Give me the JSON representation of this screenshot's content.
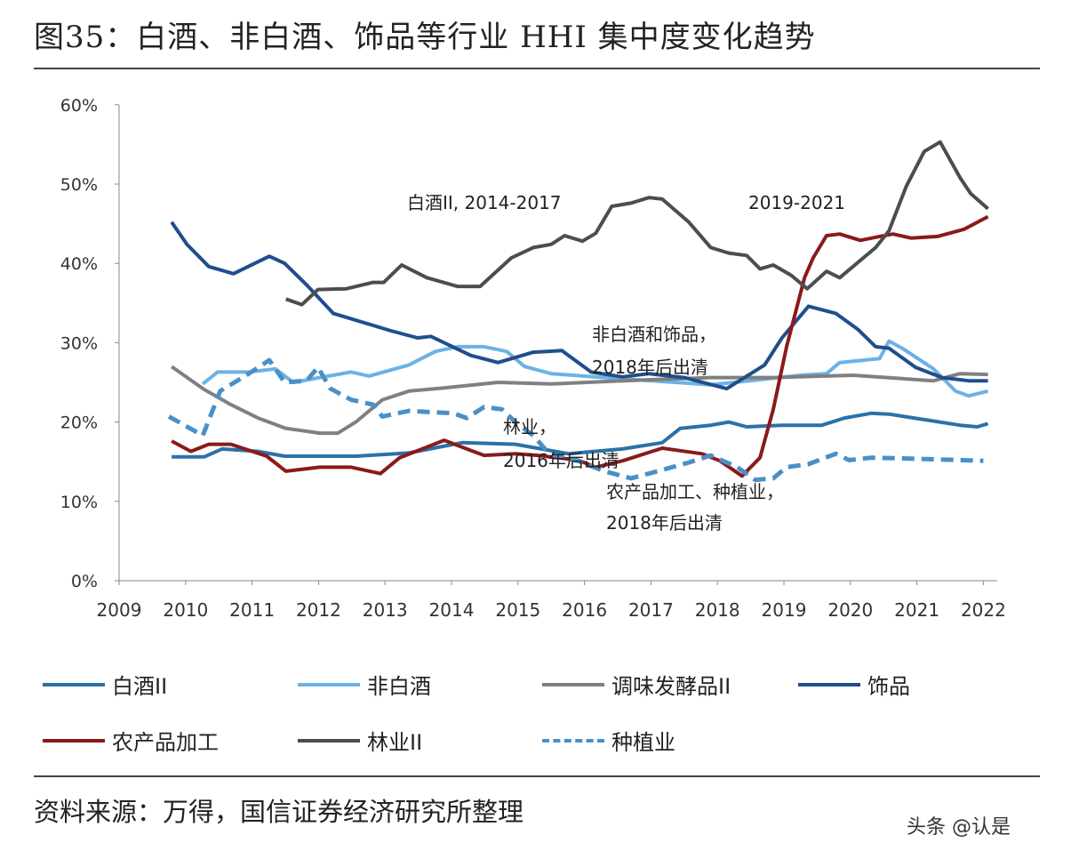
{
  "header": {
    "title": "图35：白酒、非白酒、饰品等行业 HHI 集中度变化趋势"
  },
  "footer": {
    "source": "资料来源：万得，国信证券经济研究所整理",
    "watermark": "头条 @认是"
  },
  "chart_data": {
    "type": "line",
    "title": "",
    "xlabel": "",
    "ylabel": "",
    "xlim": [
      2009,
      2022.3
    ],
    "ylim": [
      0,
      60
    ],
    "x_ticks": [
      "2009",
      "2010",
      "2011",
      "2012",
      "2013",
      "2014",
      "2015",
      "2016",
      "2017",
      "2018",
      "2019",
      "2020",
      "2021",
      "2022"
    ],
    "y_ticks": [
      "0%",
      "10%",
      "20%",
      "30%",
      "40%",
      "50%",
      "60%"
    ],
    "grid": false,
    "legend_placement": "bottom",
    "annotations": [
      "白酒II, 2014-2017",
      "2019-2021",
      "非白酒和饰品，",
      "2018年后出清",
      "林业，",
      "2016年后出清",
      "农产品加工、种植业，",
      "2018年后出清"
    ],
    "series": [
      {
        "name": "白酒II",
        "color": "#2a72a8",
        "dash": false,
        "x": [
          2009.79,
          2010.28,
          2010.55,
          2011.09,
          2011.49,
          2012.56,
          2013.36,
          2014.16,
          2014.96,
          2015.76,
          2016.57,
          2017.17,
          2017.44,
          2017.9,
          2018.17,
          2018.44,
          2018.97,
          2019.57,
          2019.91,
          2020.31,
          2020.58,
          2021.11,
          2021.65,
          2021.91,
          2022.07
        ],
        "y": [
          15.6,
          15.6,
          16.6,
          16.3,
          15.7,
          15.7,
          16.1,
          17.4,
          17.2,
          16.0,
          16.6,
          17.4,
          19.2,
          19.6,
          20.0,
          19.4,
          19.6,
          19.6,
          20.5,
          21.1,
          21.0,
          20.3,
          19.6,
          19.4,
          19.8
        ]
      },
      {
        "name": "非白酒",
        "color": "#6cb2e4",
        "dash": false,
        "x": [
          2010.26,
          2010.48,
          2010.95,
          2011.35,
          2011.62,
          2012.02,
          2012.49,
          2012.76,
          2013.36,
          2013.76,
          2014.09,
          2014.49,
          2014.83,
          2015.1,
          2015.5,
          2016.3,
          2017.37,
          2017.9,
          2018.71,
          2019.24,
          2019.64,
          2019.84,
          2020.44,
          2020.58,
          2020.78,
          2021.25,
          2021.58,
          2021.78,
          2022.07
        ],
        "y": [
          24.8,
          26.3,
          26.3,
          26.7,
          25.0,
          25.6,
          26.3,
          25.8,
          27.2,
          28.9,
          29.5,
          29.5,
          28.9,
          27.0,
          26.1,
          25.6,
          25.0,
          24.7,
          25.4,
          25.9,
          26.1,
          27.5,
          28.0,
          30.2,
          29.3,
          26.7,
          23.9,
          23.3,
          23.9
        ]
      },
      {
        "name": "调味发酵品II",
        "color": "#808080",
        "dash": false,
        "x": [
          2009.79,
          2010.28,
          2010.68,
          2011.09,
          2011.51,
          2012.02,
          2012.29,
          2012.56,
          2012.96,
          2013.36,
          2013.89,
          2014.7,
          2015.5,
          2016.57,
          2017.9,
          2018.84,
          2020.04,
          2021.25,
          2021.65,
          2022.07
        ],
        "y": [
          27.0,
          24.1,
          22.2,
          20.5,
          19.2,
          18.6,
          18.6,
          20.0,
          22.8,
          23.9,
          24.3,
          25.0,
          24.8,
          25.2,
          25.6,
          25.6,
          25.9,
          25.2,
          26.1,
          26.0
        ]
      },
      {
        "name": "饰品",
        "color": "#1f4e8c",
        "dash": false,
        "x": [
          2009.79,
          2010.02,
          2010.35,
          2010.72,
          2011.26,
          2011.49,
          2011.82,
          2012.22,
          2013.09,
          2013.49,
          2013.69,
          2014.29,
          2014.7,
          2015.23,
          2015.66,
          2016.1,
          2016.57,
          2016.97,
          2017.5,
          2018.14,
          2018.71,
          2018.97,
          2019.37,
          2019.78,
          2020.11,
          2020.38,
          2020.58,
          2020.98,
          2021.38,
          2021.78,
          2022.07
        ],
        "y": [
          45.2,
          42.4,
          39.6,
          38.7,
          40.9,
          40.0,
          37.3,
          33.7,
          31.5,
          30.6,
          30.8,
          28.4,
          27.5,
          28.8,
          29.0,
          26.3,
          25.7,
          26.1,
          25.6,
          24.2,
          27.2,
          30.6,
          34.6,
          33.7,
          31.7,
          29.5,
          29.3,
          26.9,
          25.6,
          25.2,
          25.2
        ]
      },
      {
        "name": "农产品加工",
        "color": "#8b1a1a",
        "dash": false,
        "x": [
          2009.79,
          2010.08,
          2010.35,
          2010.68,
          2011.22,
          2011.51,
          2012.02,
          2012.49,
          2012.93,
          2013.22,
          2013.89,
          2014.23,
          2014.49,
          2014.96,
          2015.3,
          2015.9,
          2016.17,
          2016.57,
          2017.17,
          2017.77,
          2018.04,
          2018.37,
          2018.64,
          2018.84,
          2019.04,
          2019.31,
          2019.44,
          2019.64,
          2019.84,
          2020.15,
          2020.44,
          2020.64,
          2020.91,
          2021.31,
          2021.71,
          2022.07
        ],
        "y": [
          17.6,
          16.3,
          17.2,
          17.2,
          15.7,
          13.8,
          14.3,
          14.3,
          13.5,
          15.5,
          17.7,
          16.6,
          15.8,
          16.0,
          15.8,
          15.2,
          14.3,
          15.1,
          16.7,
          16.0,
          15.1,
          13.2,
          15.5,
          21.6,
          29.5,
          38.2,
          40.7,
          43.5,
          43.7,
          42.9,
          43.4,
          43.7,
          43.2,
          43.4,
          44.3,
          45.9
        ]
      },
      {
        "name": "林业II",
        "color": "#4d4d4d",
        "dash": false,
        "x": [
          2011.51,
          2011.75,
          2011.99,
          2012.42,
          2012.82,
          2012.98,
          2013.25,
          2013.63,
          2014.09,
          2014.43,
          2014.9,
          2015.23,
          2015.5,
          2015.7,
          2015.97,
          2016.17,
          2016.41,
          2016.7,
          2016.97,
          2017.17,
          2017.57,
          2017.9,
          2018.17,
          2018.44,
          2018.64,
          2018.84,
          2019.11,
          2019.35,
          2019.64,
          2019.84,
          2020.38,
          2020.58,
          2020.84,
          2021.11,
          2021.35,
          2021.65,
          2021.81,
          2022.07
        ],
        "y": [
          35.5,
          34.8,
          36.7,
          36.8,
          37.6,
          37.6,
          39.8,
          38.2,
          37.1,
          37.1,
          40.7,
          42.0,
          42.4,
          43.5,
          42.8,
          43.8,
          47.2,
          47.6,
          48.3,
          48.1,
          45.2,
          42.0,
          41.3,
          41.0,
          39.3,
          39.8,
          38.5,
          36.8,
          39.0,
          38.2,
          42.0,
          44.1,
          49.7,
          54.1,
          55.3,
          50.8,
          48.8,
          46.9
        ]
      },
      {
        "name": "种植业",
        "color": "#4a90c8",
        "dash": true,
        "x": [
          2009.75,
          2010.26,
          2010.52,
          2010.95,
          2011.26,
          2011.49,
          2011.82,
          2011.99,
          2012.18,
          2012.49,
          2012.82,
          2012.96,
          2013.36,
          2014.03,
          2014.23,
          2014.49,
          2014.76,
          2014.96,
          2015.23,
          2015.47,
          2015.9,
          2016.3,
          2016.7,
          2017.1,
          2017.57,
          2017.9,
          2018.3,
          2018.57,
          2018.84,
          2019.04,
          2019.37,
          2019.78,
          2019.98,
          2020.31,
          2020.84,
          2021.65,
          2022.0
        ],
        "y": [
          20.7,
          18.3,
          23.9,
          26.1,
          27.8,
          25.0,
          25.2,
          26.9,
          24.2,
          22.8,
          22.2,
          20.7,
          21.4,
          21.1,
          20.5,
          21.9,
          21.6,
          20.0,
          18.3,
          16.0,
          15.1,
          13.8,
          12.9,
          13.8,
          14.9,
          15.8,
          14.3,
          12.7,
          12.9,
          14.3,
          14.7,
          16.0,
          15.2,
          15.5,
          15.4,
          15.2,
          15.1
        ]
      }
    ]
  }
}
